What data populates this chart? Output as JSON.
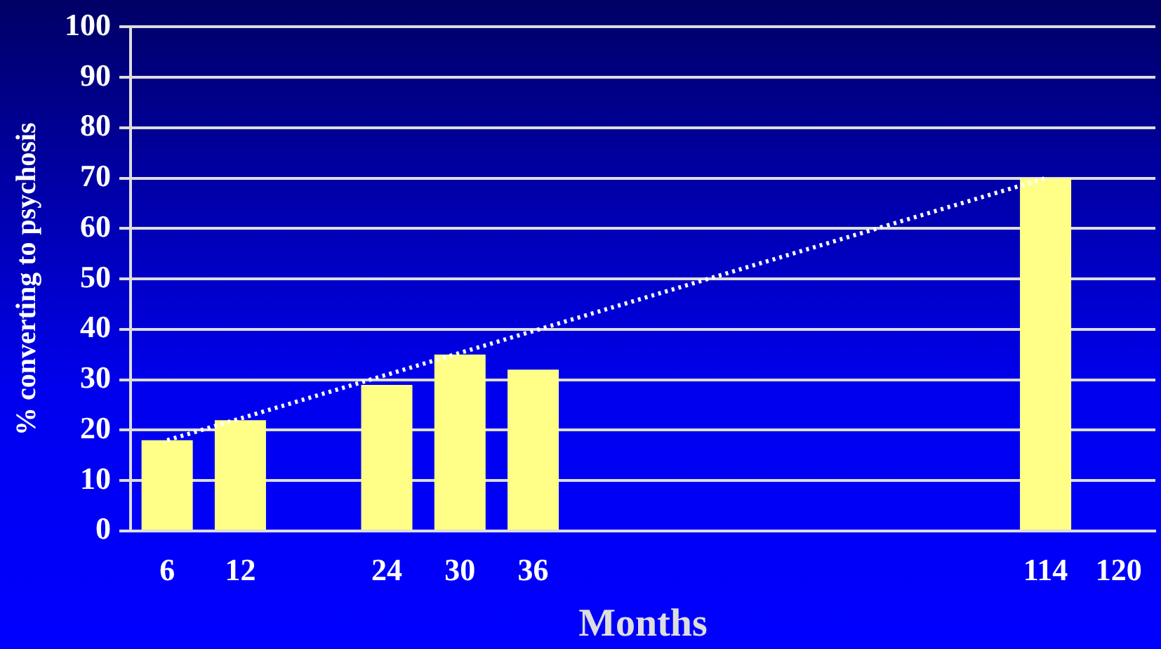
{
  "chart_data": {
    "type": "bar",
    "xlabel": "Months",
    "ylabel": "% converting to psychosis",
    "categories": [
      "6",
      "12",
      null,
      "24",
      "30",
      "36",
      null,
      null,
      null,
      null,
      null,
      null,
      "114",
      "120"
    ],
    "series": [
      {
        "color": "#ffff88",
        "values": [
          18,
          22,
          null,
          29,
          35,
          32,
          null,
          null,
          null,
          null,
          null,
          null,
          70,
          null
        ]
      },
      {
        "type": "line",
        "color": "#ffffff",
        "line_style": "dotted",
        "marker": "none",
        "x": [
          "6",
          "114"
        ],
        "values": [
          18,
          70
        ]
      }
    ],
    "ylim": [
      0,
      100
    ],
    "yticks": [
      0,
      10,
      20,
      30,
      40,
      50,
      60,
      70,
      80,
      90,
      100
    ],
    "grid": "y",
    "legend": false
  }
}
